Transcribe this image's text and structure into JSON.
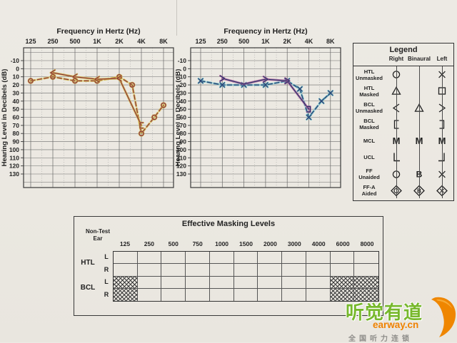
{
  "page": {
    "background": "#ece9e3"
  },
  "chart_data": [
    {
      "type": "line",
      "name": "right-ear-audiogram",
      "title": "Frequency in Hertz (Hz)",
      "ylabel": "Hearing Level in Decibels (dB)",
      "x_tick_labels": [
        "125",
        "250",
        "500",
        "1K",
        "2K",
        "4K",
        "8K"
      ],
      "x_tick_freqs": [
        125,
        250,
        500,
        1000,
        2000,
        4000,
        8000
      ],
      "y_ticks": [
        -10,
        0,
        10,
        20,
        30,
        40,
        50,
        60,
        70,
        80,
        90,
        100,
        110,
        120,
        130
      ],
      "ylim": [
        -10,
        130
      ],
      "grid": true,
      "line_color": "#8c3340",
      "halo_color": "#d5bd3e",
      "series": [
        {
          "name": "HTL Unmasked Right (circle, dashed)",
          "symbol": "circle",
          "line": "dashed",
          "points": [
            [
              125,
              15
            ],
            [
              250,
              10
            ],
            [
              500,
              15
            ],
            [
              1000,
              15
            ],
            [
              2000,
              10
            ],
            [
              3000,
              20
            ],
            [
              4000,
              80
            ],
            [
              6000,
              60
            ],
            [
              8000,
              45
            ]
          ]
        },
        {
          "name": "BCL Right (solid)",
          "line": "solid",
          "points": [
            [
              250,
              5,
              "angle-left"
            ],
            [
              500,
              10,
              "angle-left"
            ],
            [
              1000,
              13,
              "angle-left"
            ],
            [
              2000,
              12,
              "angle-left"
            ],
            [
              4000,
              70,
              "bracket-left"
            ]
          ]
        }
      ]
    },
    {
      "type": "line",
      "name": "left-ear-audiogram",
      "title": "Frequency in Hertz (Hz)",
      "ylabel": "Hearing Level in Decibels (dB)",
      "x_tick_labels": [
        "125",
        "250",
        "500",
        "1K",
        "2K",
        "4K",
        "8K"
      ],
      "x_tick_freqs": [
        125,
        250,
        500,
        1000,
        2000,
        4000,
        8000
      ],
      "y_ticks": [
        -10,
        0,
        10,
        20,
        30,
        40,
        50,
        60,
        70,
        80,
        90,
        100,
        110,
        120,
        130
      ],
      "ylim": [
        -10,
        130
      ],
      "grid": true,
      "line_color": "#2b3a6e",
      "halo_color": "#5cb6c4",
      "series": [
        {
          "name": "HTL Unmasked Left (x, dashed)",
          "symbol": "x",
          "line": "dashed",
          "points": [
            [
              125,
              15
            ],
            [
              250,
              20
            ],
            [
              500,
              20
            ],
            [
              1000,
              20
            ],
            [
              2000,
              15
            ],
            [
              3000,
              25
            ],
            [
              4000,
              60
            ],
            [
              6000,
              40
            ],
            [
              8000,
              30
            ]
          ]
        },
        {
          "name": "BCL Left (solid)",
          "line": "solid",
          "halo": "#b55a9a",
          "points": [
            [
              250,
              12,
              "angle-right"
            ],
            [
              500,
              19,
              null
            ],
            [
              1000,
              13,
              "angle-right"
            ],
            [
              2000,
              15,
              "angle-right"
            ],
            [
              4000,
              50,
              "bracket-right"
            ]
          ]
        }
      ]
    }
  ],
  "legend": {
    "title": "Legend",
    "columns": [
      "Right",
      "Binaural",
      "Left"
    ],
    "rows": [
      {
        "label": "HTL\nUnmasked",
        "symbols": [
          "circle",
          "",
          "x"
        ]
      },
      {
        "label": "HTL\nMasked",
        "symbols": [
          "triangle",
          "",
          "square"
        ]
      },
      {
        "label": "BCL\nUnmasked",
        "symbols": [
          "angle-left",
          "triangle",
          "angle-right"
        ]
      },
      {
        "label": "BCL\nMasked",
        "symbols": [
          "bracket-left",
          "",
          "bracket-right"
        ]
      },
      {
        "label": "MCL",
        "symbols": [
          "M",
          "M",
          "M"
        ]
      },
      {
        "label": "UCL",
        "symbols": [
          "corner-right",
          "",
          "corner-left"
        ]
      },
      {
        "label": "FF\nUnaided",
        "symbols": [
          "circle",
          "B",
          "x"
        ]
      },
      {
        "label": "FF-A\nAided",
        "symbols": [
          "diamond-circle",
          "diamond-B",
          "diamond-x"
        ]
      }
    ]
  },
  "masking_table": {
    "title": "Effective Masking Levels",
    "corner_label": "Non-Test\nEar",
    "col_headers": [
      "125",
      "250",
      "500",
      "750",
      "1000",
      "1500",
      "2000",
      "3000",
      "4000",
      "6000",
      "8000"
    ],
    "row_groups": [
      {
        "label": "HTL",
        "rows": [
          "L",
          "R"
        ]
      },
      {
        "label": "BCL",
        "rows": [
          "L",
          "R"
        ]
      }
    ],
    "hatched": [
      {
        "group": "BCL",
        "row": "L",
        "cols": [
          "125",
          "6000",
          "8000"
        ]
      },
      {
        "group": "BCL",
        "row": "R",
        "cols": [
          "125",
          "6000",
          "8000"
        ]
      }
    ]
  },
  "logo": {
    "brand": "听觉有道",
    "domain": "earway.cn",
    "slogan": "全国听力连锁",
    "brand_color": "#77b82c",
    "accent_color": "#ef8200",
    "slogan_color": "#8f8e8a"
  }
}
